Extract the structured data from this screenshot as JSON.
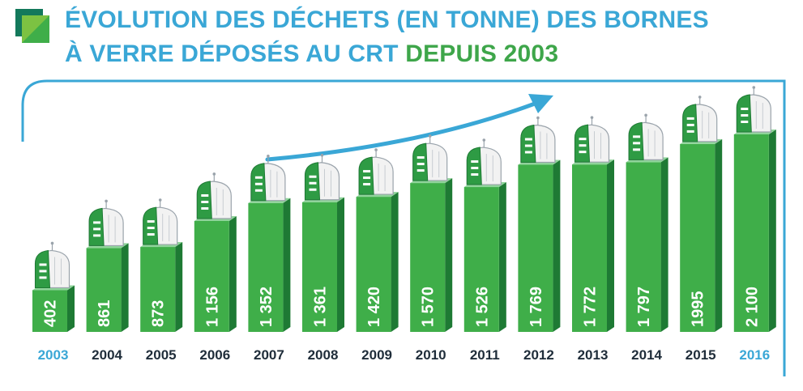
{
  "title": {
    "line1": "ÉVOLUTION DES DÉCHETS (EN TONNE) DES BORNES",
    "line2_part1": "À VERRE DÉPOSÉS AU CRT ",
    "line2_part2": "DEPUIS 2003"
  },
  "colors": {
    "title_blue": "#3aa7d6",
    "title_green": "#3ea64a",
    "bar_front": "#3fae49",
    "bar_side": "#1e7a34",
    "year_blue": "#3aa7d6",
    "year_dark": "#1f2d3a"
  },
  "icons": {
    "logo": "stacked-squares-logo",
    "bar_top": "glass-recycling-bin-icon",
    "trend": "trend-arrow"
  },
  "chart_data": {
    "type": "bar",
    "title": "ÉVOLUTION DES DÉCHETS (EN TONNE) DES BORNES À VERRE DÉPOSÉS AU CRT DEPUIS 2003",
    "xlabel": "",
    "ylabel": "",
    "categories": [
      "2003",
      "2004",
      "2005",
      "2006",
      "2007",
      "2008",
      "2009",
      "2010",
      "2011",
      "2012",
      "2013",
      "2014",
      "2015",
      "2016"
    ],
    "values": [
      402,
      861,
      873,
      1156,
      1352,
      1361,
      1420,
      1570,
      1526,
      1769,
      1772,
      1797,
      1995,
      2100
    ],
    "value_labels": [
      "402",
      "861",
      "873",
      "1 156",
      "1 352",
      "1 361",
      "1 420",
      "1 570",
      "1 526",
      "1 769",
      "1 772",
      "1 797",
      "1995",
      "2 100"
    ],
    "highlighted_years": [
      "2003",
      "2016"
    ],
    "ylim": [
      0,
      2100
    ],
    "grid": false,
    "legend": "none"
  }
}
